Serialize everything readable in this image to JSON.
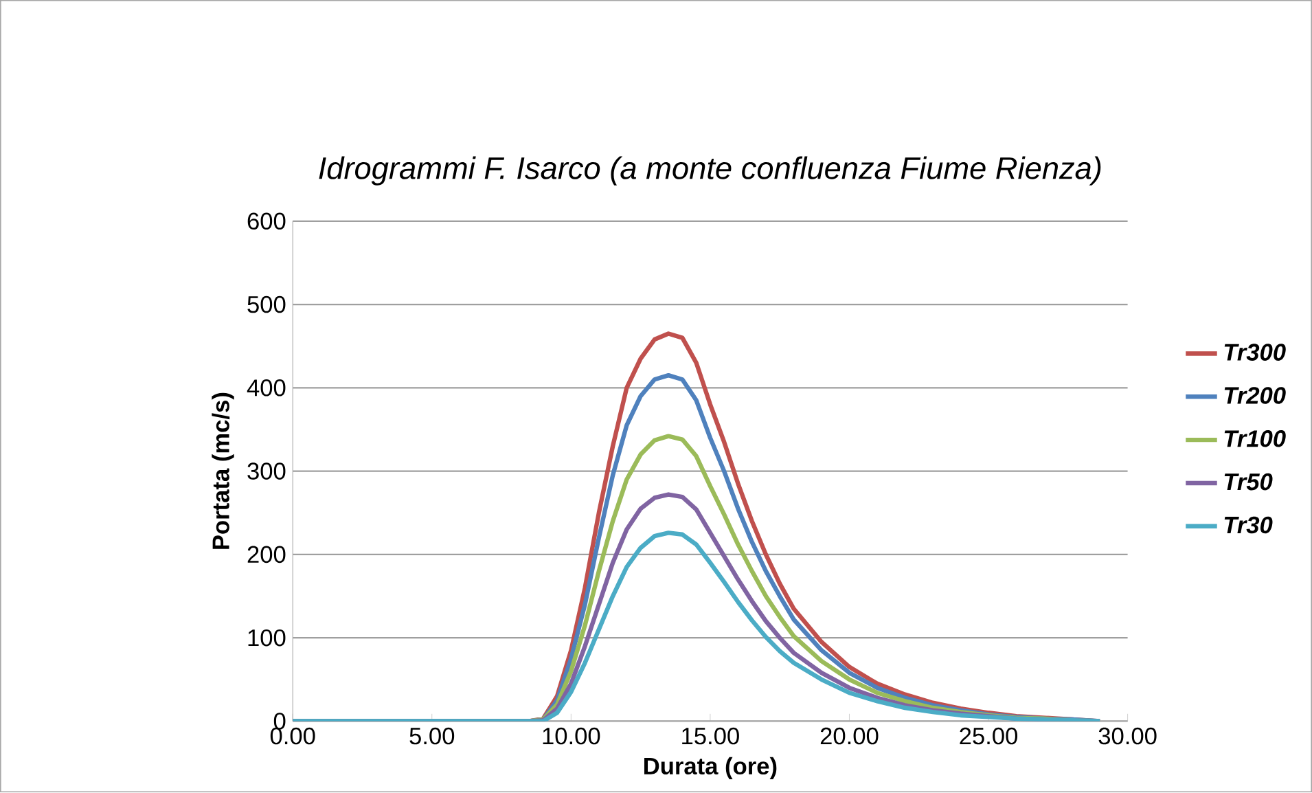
{
  "chart_data": {
    "type": "line",
    "title": "Idrogrammi F. Isarco (a monte confluenza Fiume Rienza)",
    "xlabel": "Durata (ore)",
    "ylabel": "Portata (mc/s)",
    "x": [
      0,
      8.5,
      9,
      9.5,
      10,
      10.5,
      11,
      11.5,
      12,
      12.5,
      13,
      13.5,
      14,
      14.5,
      15,
      15.5,
      16,
      16.5,
      17,
      17.5,
      18,
      19,
      20,
      21,
      22,
      23,
      24,
      25,
      26,
      27,
      28,
      29
    ],
    "series": [
      {
        "name": "Tr300",
        "color": "#c0504d",
        "values": [
          0,
          0,
          3,
          30,
          85,
          160,
          250,
          330,
          400,
          435,
          458,
          465,
          460,
          430,
          380,
          335,
          285,
          240,
          200,
          165,
          135,
          95,
          65,
          45,
          32,
          22,
          15,
          10,
          6,
          4,
          2,
          0
        ]
      },
      {
        "name": "Tr200",
        "color": "#4f81bd",
        "values": [
          0,
          0,
          2,
          25,
          75,
          140,
          220,
          295,
          355,
          390,
          410,
          415,
          410,
          385,
          340,
          300,
          255,
          215,
          180,
          150,
          122,
          85,
          58,
          40,
          28,
          19,
          13,
          8,
          5,
          3,
          2,
          0
        ]
      },
      {
        "name": "Tr100",
        "color": "#9bbb59",
        "values": [
          0,
          0,
          2,
          20,
          60,
          115,
          180,
          240,
          290,
          320,
          337,
          342,
          338,
          318,
          282,
          248,
          212,
          180,
          150,
          125,
          102,
          72,
          50,
          34,
          24,
          16,
          11,
          7,
          4,
          3,
          1,
          0
        ]
      },
      {
        "name": "Tr50",
        "color": "#8064a2",
        "values": [
          0,
          0,
          1,
          15,
          45,
          90,
          140,
          190,
          230,
          255,
          268,
          272,
          269,
          254,
          226,
          198,
          170,
          144,
          120,
          100,
          82,
          58,
          40,
          28,
          19,
          13,
          9,
          6,
          3,
          2,
          1,
          0
        ]
      },
      {
        "name": "Tr30",
        "color": "#4bacc6",
        "values": [
          0,
          0,
          0,
          10,
          35,
          70,
          110,
          150,
          185,
          208,
          222,
          226,
          224,
          212,
          190,
          167,
          143,
          121,
          101,
          84,
          70,
          50,
          34,
          24,
          16,
          11,
          7,
          5,
          3,
          2,
          1,
          0
        ]
      }
    ],
    "xlim": [
      0,
      30
    ],
    "ylim": [
      0,
      600
    ],
    "xticks": [
      {
        "value": 0,
        "label": "0.00"
      },
      {
        "value": 5,
        "label": "5.00"
      },
      {
        "value": 10,
        "label": "10.00"
      },
      {
        "value": 15,
        "label": "15.00"
      },
      {
        "value": 20,
        "label": "20.00"
      },
      {
        "value": 25,
        "label": "25.00"
      },
      {
        "value": 30,
        "label": "30.00"
      }
    ],
    "yticks": [
      0,
      100,
      200,
      300,
      400,
      500,
      600
    ],
    "grid": "y",
    "legend": "right",
    "marker": "none",
    "line_style": "solid"
  }
}
